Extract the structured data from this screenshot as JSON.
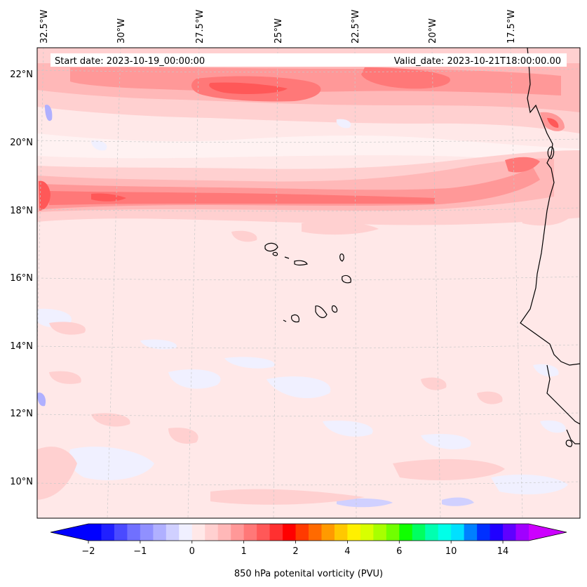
{
  "header": {
    "start_date": "Start date: 2023-10-19_00:00:00",
    "valid_date": "Valid_date: 2023-10-21T18:00:00.00"
  },
  "map": {
    "lon_labels": [
      "32.5°W",
      "30°W",
      "27.5°W",
      "25°W",
      "22.5°W",
      "20°W",
      "17.5°W"
    ],
    "lat_labels": [
      "22°N",
      "20°N",
      "18°N",
      "16°N",
      "14°N",
      "12°N",
      "10°N"
    ]
  },
  "colorbar": {
    "label": "850 hPa potenital vorticity (PVU)",
    "tick_labels": [
      "−2",
      "−1",
      "0",
      "1",
      "2",
      "4",
      "6",
      "10",
      "14"
    ],
    "tick_values": [
      -2,
      -1,
      0,
      1,
      2,
      4,
      6,
      10,
      14
    ],
    "colors": [
      "#0000ff",
      "#2020ff",
      "#4a4aff",
      "#7070ff",
      "#9090ff",
      "#b0b0ff",
      "#d0d0ff",
      "#f0f0ff",
      "#ffe8e8",
      "#ffd0d0",
      "#ffb8b8",
      "#ff9898",
      "#ff7878",
      "#ff5858",
      "#ff3030",
      "#ff0000",
      "#ff3a00",
      "#ff6a00",
      "#ff9a00",
      "#ffc800",
      "#fff000",
      "#d8ff00",
      "#a8ff00",
      "#70ff00",
      "#10ff00",
      "#00ff60",
      "#00ffb0",
      "#00ffe8",
      "#00e0ff",
      "#0080ff",
      "#0030ff",
      "#2000ff",
      "#6000ff",
      "#a000ff"
    ],
    "under_color": "#0000ff",
    "over_color": "#cc00ff"
  }
}
